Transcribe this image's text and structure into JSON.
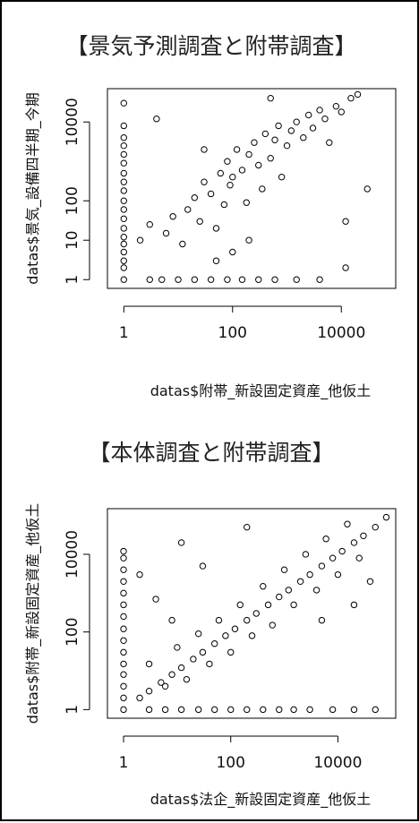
{
  "chart_data": [
    {
      "type": "scatter",
      "title": "【景気予測調査と附帯調査】",
      "xlabel": "datas$附帯_新設固定資産_他仮土",
      "ylabel": "datas$景気_設備四半期_今期",
      "xscale": "log",
      "yscale": "log",
      "xlim": [
        0.5,
        100000
      ],
      "ylim": [
        0.6,
        70000
      ],
      "x_ticks": [
        1,
        100,
        10000
      ],
      "x_tick_labels": [
        "1",
        "100",
        "10000"
      ],
      "y_ticks": [
        1,
        10,
        100,
        10000
      ],
      "y_tick_labels": [
        "1",
        "10",
        "100",
        "10000"
      ],
      "grid": false,
      "points": [
        [
          1,
          1
        ],
        [
          1,
          2
        ],
        [
          1,
          3
        ],
        [
          1,
          5
        ],
        [
          1,
          8
        ],
        [
          1,
          12
        ],
        [
          1,
          20
        ],
        [
          1,
          35
        ],
        [
          1,
          60
        ],
        [
          1,
          100
        ],
        [
          1,
          180
        ],
        [
          1,
          300
        ],
        [
          1,
          500
        ],
        [
          1,
          900
        ],
        [
          1,
          1500
        ],
        [
          1,
          2500
        ],
        [
          1,
          4000
        ],
        [
          1,
          8000
        ],
        [
          1,
          30000
        ],
        [
          3,
          1
        ],
        [
          5,
          1
        ],
        [
          10,
          1
        ],
        [
          20,
          1
        ],
        [
          40,
          1
        ],
        [
          80,
          1
        ],
        [
          150,
          1
        ],
        [
          300,
          1
        ],
        [
          600,
          1
        ],
        [
          1500,
          1
        ],
        [
          4000,
          1
        ],
        [
          2,
          10
        ],
        [
          3,
          25
        ],
        [
          4,
          12000
        ],
        [
          6,
          15
        ],
        [
          8,
          40
        ],
        [
          12,
          8
        ],
        [
          15,
          60
        ],
        [
          20,
          120
        ],
        [
          25,
          30
        ],
        [
          30,
          300
        ],
        [
          40,
          150
        ],
        [
          50,
          20
        ],
        [
          60,
          500
        ],
        [
          70,
          80
        ],
        [
          80,
          1000
        ],
        [
          90,
          250
        ],
        [
          100,
          400
        ],
        [
          120,
          2000
        ],
        [
          150,
          600
        ],
        [
          180,
          90
        ],
        [
          200,
          1500
        ],
        [
          250,
          3000
        ],
        [
          300,
          800
        ],
        [
          350,
          200
        ],
        [
          400,
          5000
        ],
        [
          500,
          1200
        ],
        [
          600,
          3500
        ],
        [
          700,
          8000
        ],
        [
          800,
          400
        ],
        [
          1000,
          2500
        ],
        [
          1200,
          6000
        ],
        [
          1500,
          10000
        ],
        [
          2000,
          4000
        ],
        [
          2500,
          15000
        ],
        [
          3000,
          7000
        ],
        [
          4000,
          20000
        ],
        [
          5000,
          12000
        ],
        [
          6000,
          3000
        ],
        [
          8000,
          25000
        ],
        [
          10000,
          18000
        ],
        [
          12000,
          30
        ],
        [
          12000,
          2
        ],
        [
          15000,
          40000
        ],
        [
          20000,
          50000
        ],
        [
          30000,
          200
        ],
        [
          500,
          40000
        ],
        [
          200,
          10
        ],
        [
          100,
          5
        ],
        [
          50,
          3
        ],
        [
          30,
          2000
        ]
      ]
    },
    {
      "type": "scatter",
      "title": "【本体調査と附帯調査】",
      "xlabel": "datas$法企_新設固定資産_他仮土",
      "ylabel": "datas$附帯_新設固定資産_他仮土",
      "xscale": "log",
      "yscale": "log",
      "xlim": [
        0.5,
        120000
      ],
      "ylim": [
        0.6,
        150000
      ],
      "x_ticks": [
        1,
        100,
        10000
      ],
      "x_tick_labels": [
        "1",
        "100",
        "10000"
      ],
      "y_ticks": [
        1,
        100,
        10000
      ],
      "y_tick_labels": [
        "1",
        "100",
        "10000"
      ],
      "grid": false,
      "points": [
        [
          1,
          1
        ],
        [
          1,
          2
        ],
        [
          1,
          4
        ],
        [
          1,
          8
        ],
        [
          1,
          15
        ],
        [
          1,
          30
        ],
        [
          1,
          60
        ],
        [
          1,
          120
        ],
        [
          1,
          250
        ],
        [
          1,
          500
        ],
        [
          1,
          1000
        ],
        [
          1,
          2000
        ],
        [
          1,
          4000
        ],
        [
          1,
          8000
        ],
        [
          1,
          12000
        ],
        [
          3,
          1
        ],
        [
          6,
          1
        ],
        [
          12,
          1
        ],
        [
          25,
          1
        ],
        [
          50,
          1
        ],
        [
          100,
          1
        ],
        [
          200,
          1
        ],
        [
          400,
          1
        ],
        [
          800,
          1
        ],
        [
          1500,
          1
        ],
        [
          3000,
          1
        ],
        [
          8000,
          1
        ],
        [
          20000,
          1
        ],
        [
          50000,
          1
        ],
        [
          2,
          2
        ],
        [
          3,
          3
        ],
        [
          5,
          5
        ],
        [
          8,
          8
        ],
        [
          12,
          12
        ],
        [
          20,
          20
        ],
        [
          30,
          30
        ],
        [
          50,
          50
        ],
        [
          80,
          80
        ],
        [
          120,
          120
        ],
        [
          200,
          200
        ],
        [
          300,
          300
        ],
        [
          500,
          500
        ],
        [
          800,
          800
        ],
        [
          1200,
          1200
        ],
        [
          2000,
          2000
        ],
        [
          3000,
          3000
        ],
        [
          5000,
          5000
        ],
        [
          8000,
          8000
        ],
        [
          12000,
          12000
        ],
        [
          20000,
          20000
        ],
        [
          30000,
          30000
        ],
        [
          50000,
          50000
        ],
        [
          80000,
          90000
        ],
        [
          3,
          15
        ],
        [
          6,
          4
        ],
        [
          10,
          40
        ],
        [
          15,
          6
        ],
        [
          25,
          90
        ],
        [
          40,
          15
        ],
        [
          60,
          200
        ],
        [
          100,
          30
        ],
        [
          150,
          500
        ],
        [
          250,
          80
        ],
        [
          400,
          1500
        ],
        [
          600,
          150
        ],
        [
          1000,
          4000
        ],
        [
          1500,
          500
        ],
        [
          2500,
          10000
        ],
        [
          4000,
          1200
        ],
        [
          6000,
          25000
        ],
        [
          10000,
          3000
        ],
        [
          15000,
          60000
        ],
        [
          25000,
          8000
        ],
        [
          2,
          3000
        ],
        [
          4,
          700
        ],
        [
          8,
          200
        ],
        [
          12,
          20000
        ],
        [
          30,
          5000
        ],
        [
          200,
          50000
        ],
        [
          5000,
          200
        ],
        [
          20000,
          500
        ],
        [
          40000,
          2000
        ]
      ]
    }
  ]
}
